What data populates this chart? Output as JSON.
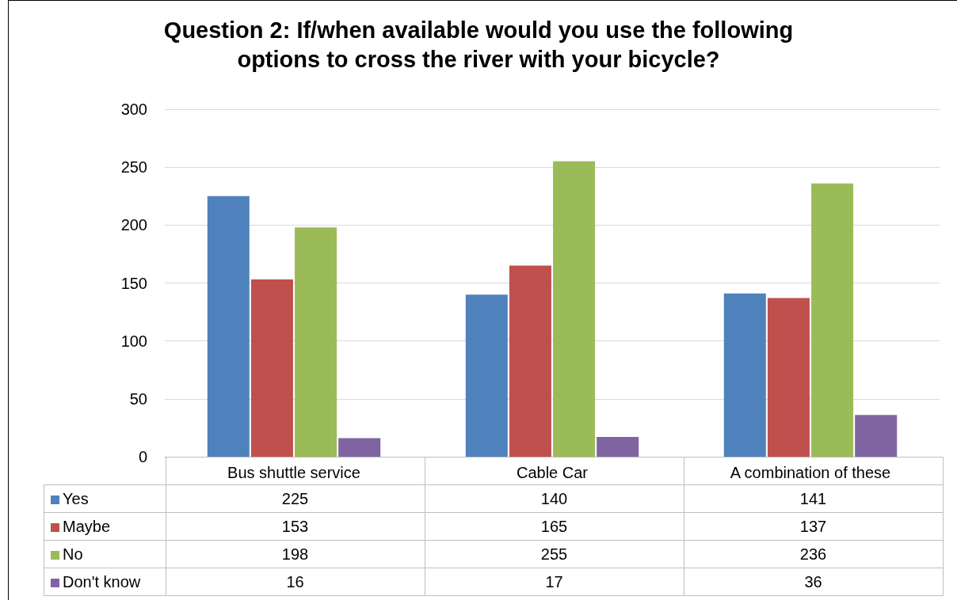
{
  "chart_data": {
    "type": "bar",
    "title": "Question 2: If/when available would you use the following\noptions to cross the river with your bicycle?",
    "categories": [
      "Bus shuttle service",
      "Cable Car",
      "A combination of these"
    ],
    "series": [
      {
        "name": "Yes",
        "color": "#4f81bd",
        "values": [
          225,
          140,
          141
        ]
      },
      {
        "name": "Maybe",
        "color": "#c0504d",
        "values": [
          153,
          165,
          137
        ]
      },
      {
        "name": "No",
        "color": "#9bbb59",
        "values": [
          198,
          255,
          236
        ]
      },
      {
        "name": "Don't know",
        "color": "#8064a2",
        "values": [
          16,
          17,
          36
        ]
      }
    ],
    "ylim": [
      0,
      300
    ],
    "yticks": [
      0,
      50,
      100,
      150,
      200,
      250,
      300
    ],
    "grid": "y",
    "legend": "bottom",
    "data_labels": true
  }
}
